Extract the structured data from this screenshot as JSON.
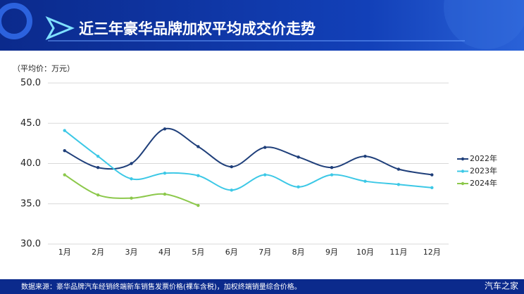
{
  "chart_data": {
    "type": "line",
    "title": "近三年豪华品牌加权平均成交价走势",
    "y_label": "（平均价：万元）",
    "source": "数据来源：豪华品牌汽车经销终端新车销售发票价格(裸车含税)，加权终端销量综合价格。",
    "brand": "汽车之家",
    "categories": [
      "1月",
      "2月",
      "3月",
      "4月",
      "5月",
      "6月",
      "7月",
      "8月",
      "9月",
      "10月",
      "11月",
      "12月"
    ],
    "series": [
      {
        "name": "2022年",
        "color": "#1f3f7a",
        "values": [
          41.6,
          39.5,
          40.0,
          44.3,
          42.1,
          39.6,
          42.0,
          40.8,
          39.5,
          40.9,
          39.3,
          38.6
        ]
      },
      {
        "name": "2023年",
        "color": "#3cc8e6",
        "values": [
          44.1,
          40.9,
          38.1,
          38.8,
          38.5,
          36.7,
          38.6,
          37.1,
          38.6,
          37.8,
          37.4,
          37.0
        ]
      },
      {
        "name": "2024年",
        "color": "#8cc84b",
        "values": [
          38.6,
          36.1,
          35.7,
          36.2,
          34.8,
          null,
          null,
          null,
          null,
          null,
          null,
          null
        ]
      }
    ],
    "ylim": [
      30,
      50
    ],
    "yticks": [
      {
        "value": 30,
        "label": "30.0"
      },
      {
        "value": 35,
        "label": "35.0"
      },
      {
        "value": 40,
        "label": "40.0"
      },
      {
        "value": 45,
        "label": "45.0"
      },
      {
        "value": 50,
        "label": "50.0"
      }
    ],
    "grid": true,
    "legend": "right"
  }
}
